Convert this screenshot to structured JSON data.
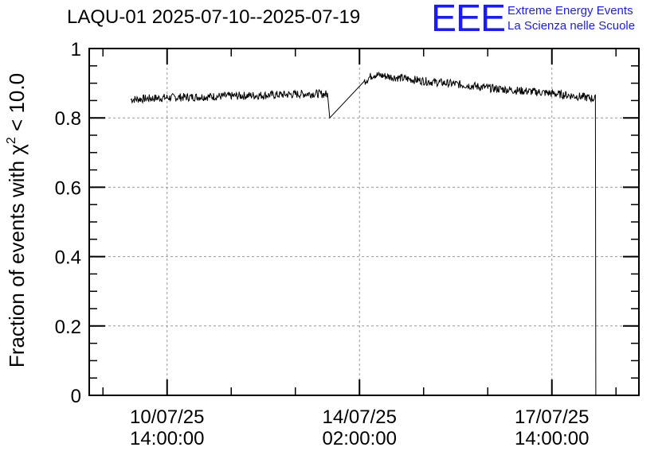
{
  "title": "LAQU-01 2025-07-10--2025-07-19",
  "logo": {
    "mark": "EEE",
    "line1": "Extreme Energy Events",
    "line2": "La Scienza nelle Scuole",
    "color": "#1a1aff"
  },
  "chart_data": {
    "type": "line",
    "title": "LAQU-01 2025-07-10--2025-07-19",
    "ylabel_prefix": "Fraction of events with ",
    "ylabel_symbol": "χ",
    "ylabel_sup": "2",
    "ylabel_suffix": " < 10.0",
    "xlabel": "",
    "ylim": [
      0,
      1
    ],
    "yticks": [
      0,
      0.2,
      0.4,
      0.6,
      0.8,
      1
    ],
    "ytick_labels": [
      "0",
      "0.2",
      "0.4",
      "0.6",
      "0.8",
      "1"
    ],
    "xlim": [
      "2025-07-09 04:00",
      "2025-07-19 04:00"
    ],
    "xticks": [
      {
        "line1": "10/07/25",
        "line2": "14:00:00",
        "x": "2025-07-10 14:00"
      },
      {
        "line1": "14/07/25",
        "line2": "02:00:00",
        "x": "2025-07-14 02:00"
      },
      {
        "line1": "17/07/25",
        "line2": "14:00:00",
        "x": "2025-07-17 14:00"
      }
    ],
    "grid": true,
    "line_color": "#000000",
    "noise_amplitude": 0.012,
    "series": [
      {
        "values": [
          {
            "x": "2025-07-09 22:00",
            "y": 0.853
          },
          {
            "x": "2025-07-10 12:00",
            "y": 0.858
          },
          {
            "x": "2025-07-11 12:00",
            "y": 0.862
          },
          {
            "x": "2025-07-12 12:00",
            "y": 0.866
          },
          {
            "x": "2025-07-13 06:00",
            "y": 0.87
          },
          {
            "x": "2025-07-13 12:00",
            "y": 0.868
          },
          {
            "x": "2025-07-13 13:00",
            "y": 0.8
          },
          {
            "x": "2025-07-14 04:00",
            "y": 0.905
          },
          {
            "x": "2025-07-14 08:00",
            "y": 0.925
          },
          {
            "x": "2025-07-14 16:00",
            "y": 0.918
          },
          {
            "x": "2025-07-15 08:00",
            "y": 0.905
          },
          {
            "x": "2025-07-16 00:00",
            "y": 0.895
          },
          {
            "x": "2025-07-16 12:00",
            "y": 0.885
          },
          {
            "x": "2025-07-17 12:00",
            "y": 0.872
          },
          {
            "x": "2025-07-18 04:00",
            "y": 0.86
          },
          {
            "x": "2025-07-18 09:00",
            "y": 0.855
          },
          {
            "x": "2025-07-18 09:10",
            "y": 0.0
          }
        ]
      }
    ]
  }
}
